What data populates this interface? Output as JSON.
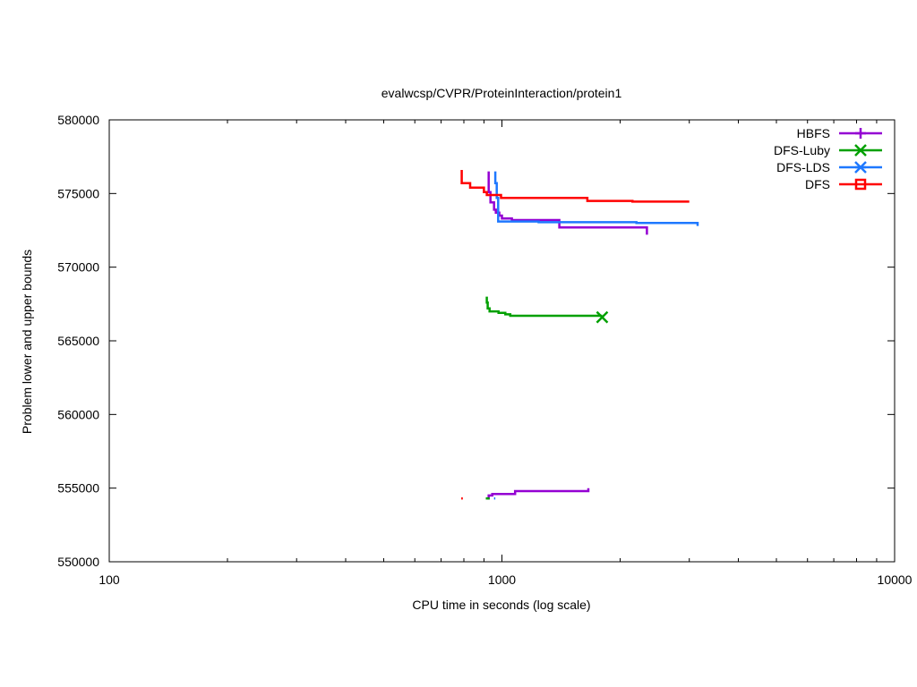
{
  "chart_data": {
    "type": "line",
    "title": "evalwcsp/CVPR/ProteinInteraction/protein1",
    "xlabel": "CPU time in seconds (log scale)",
    "ylabel": "Problem lower and upper bounds",
    "xscale": "log",
    "xlim": [
      100,
      10000
    ],
    "ylim": [
      550000,
      580000
    ],
    "x_ticks": [
      100,
      1000,
      10000
    ],
    "x_tick_labels": [
      "100",
      "1000",
      "10000"
    ],
    "y_ticks": [
      550000,
      555000,
      560000,
      565000,
      570000,
      575000,
      580000
    ],
    "y_tick_labels": [
      "550000",
      "555000",
      "560000",
      "565000",
      "570000",
      "575000",
      "580000"
    ],
    "grid": false,
    "legend_position": "top-right",
    "series": [
      {
        "name": "HBFS",
        "color": "#9400d3",
        "marker": "plus",
        "upper": [
          [
            925,
            576500
          ],
          [
            925,
            575100
          ],
          [
            935,
            575100
          ],
          [
            935,
            574400
          ],
          [
            955,
            574400
          ],
          [
            955,
            573900
          ],
          [
            965,
            573900
          ],
          [
            965,
            573700
          ],
          [
            985,
            573700
          ],
          [
            985,
            573500
          ],
          [
            1000,
            573500
          ],
          [
            1000,
            573300
          ],
          [
            1060,
            573300
          ],
          [
            1060,
            573200
          ],
          [
            1400,
            573200
          ],
          [
            1400,
            572700
          ],
          [
            2340,
            572700
          ],
          [
            2340,
            572200
          ]
        ],
        "lower": [
          [
            918,
            554300
          ],
          [
            925,
            554300
          ],
          [
            925,
            554500
          ],
          [
            945,
            554500
          ],
          [
            945,
            554600
          ],
          [
            1080,
            554600
          ],
          [
            1080,
            554800
          ],
          [
            1660,
            554800
          ],
          [
            1660,
            555000
          ]
        ]
      },
      {
        "name": "DFS-Luby",
        "color": "#00a000",
        "marker": "x",
        "upper": [
          [
            915,
            568000
          ],
          [
            915,
            567600
          ],
          [
            920,
            567600
          ],
          [
            920,
            567200
          ],
          [
            930,
            567200
          ],
          [
            930,
            567000
          ],
          [
            980,
            567000
          ],
          [
            980,
            566900
          ],
          [
            1020,
            566900
          ],
          [
            1020,
            566800
          ],
          [
            1050,
            566800
          ],
          [
            1050,
            566700
          ],
          [
            1800,
            566700
          ]
        ],
        "lower": [
          [
            910,
            554300
          ],
          [
            930,
            554300
          ]
        ],
        "end_marker": [
          1800,
          566600
        ]
      },
      {
        "name": "DFS-LDS",
        "color": "#1e78ff",
        "marker": "asterisk",
        "upper": [
          [
            962,
            576500
          ],
          [
            962,
            575700
          ],
          [
            970,
            575700
          ],
          [
            970,
            574700
          ],
          [
            978,
            574700
          ],
          [
            978,
            573100
          ],
          [
            1240,
            573100
          ],
          [
            1240,
            573050
          ],
          [
            2200,
            573050
          ],
          [
            2200,
            573000
          ],
          [
            3150,
            573000
          ],
          [
            3150,
            572800
          ]
        ],
        "lower": [
          [
            955,
            554300
          ],
          [
            962,
            554300
          ]
        ]
      },
      {
        "name": "DFS",
        "color": "#ff0000",
        "marker": "square",
        "upper": [
          [
            790,
            576600
          ],
          [
            790,
            575700
          ],
          [
            830,
            575700
          ],
          [
            830,
            575400
          ],
          [
            900,
            575400
          ],
          [
            900,
            575100
          ],
          [
            915,
            575100
          ],
          [
            915,
            574900
          ],
          [
            995,
            574900
          ],
          [
            995,
            574700
          ],
          [
            1650,
            574700
          ],
          [
            1650,
            574500
          ],
          [
            2150,
            574500
          ],
          [
            2150,
            574450
          ],
          [
            3000,
            574450
          ]
        ],
        "lower": [
          [
            788,
            554300
          ],
          [
            795,
            554300
          ]
        ]
      }
    ]
  }
}
